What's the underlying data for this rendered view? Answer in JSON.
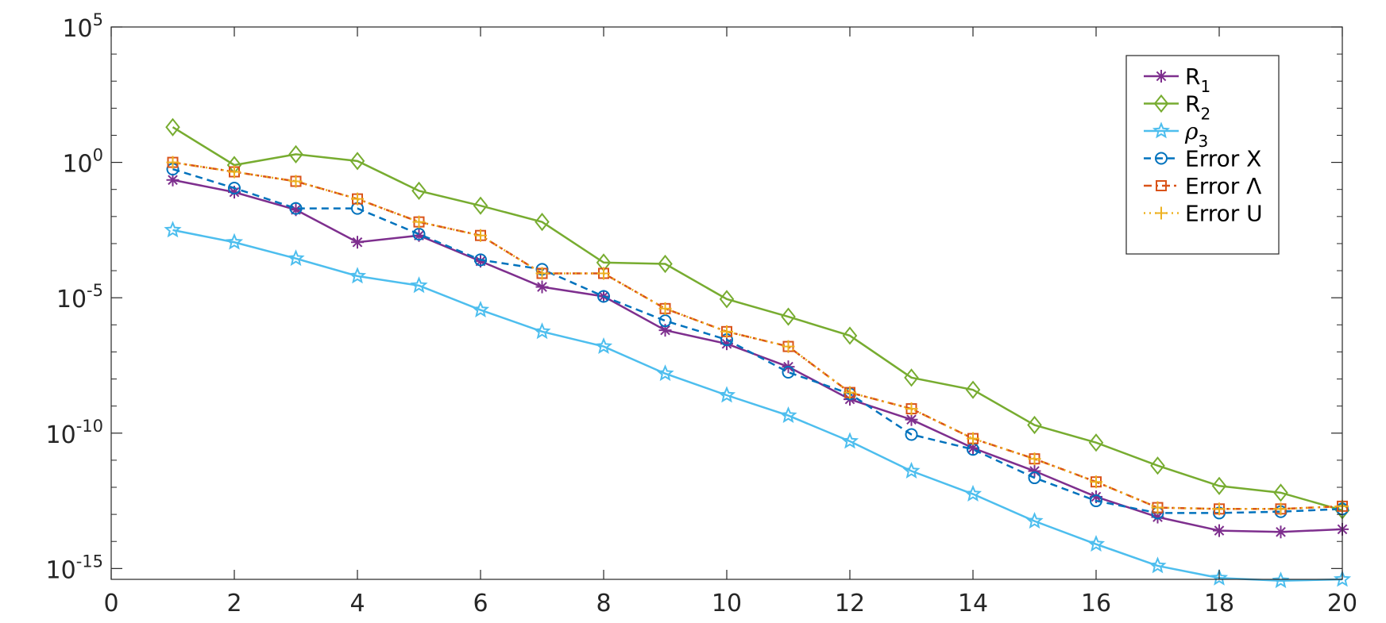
{
  "chart_data": {
    "type": "line",
    "title": "",
    "xlabel": "",
    "ylabel": "",
    "xlim": [
      0,
      20
    ],
    "ylim_log10": [
      -15.4,
      5
    ],
    "yscale": "log",
    "grid": false,
    "legend_position": "top-right",
    "x_ticks": [
      "0",
      "2",
      "4",
      "6",
      "8",
      "10",
      "12",
      "14",
      "16",
      "18",
      "20"
    ],
    "y_ticks": [
      {
        "base": "10",
        "exp": "5",
        "exp10": 5
      },
      {
        "base": "10",
        "exp": "0",
        "exp10": 0
      },
      {
        "base": "10",
        "exp": "-5",
        "exp10": -5
      },
      {
        "base": "10",
        "exp": "-10",
        "exp10": -10
      },
      {
        "base": "10",
        "exp": "-15",
        "exp10": -15
      }
    ],
    "x": [
      1,
      2,
      3,
      4,
      5,
      6,
      7,
      8,
      9,
      10,
      11,
      12,
      13,
      14,
      15,
      16,
      17,
      18,
      19,
      20
    ],
    "series": [
      {
        "name": "R",
        "name_sub": "1",
        "color": "#7E2F8E",
        "marker": "asterisk",
        "dash": "solid",
        "log10_values": [
          -0.65,
          -1.1,
          -1.75,
          -2.95,
          -2.7,
          -3.65,
          -4.6,
          -4.95,
          -6.2,
          -6.7,
          -7.55,
          -8.75,
          -9.5,
          -10.55,
          -11.4,
          -12.35,
          -13.1,
          -13.6,
          -13.65,
          -13.55
        ]
      },
      {
        "name": "R",
        "name_sub": "2",
        "color": "#77AC30",
        "marker": "diamond",
        "dash": "solid",
        "log10_values": [
          1.3,
          -0.1,
          0.3,
          0.05,
          -1.05,
          -1.6,
          -2.2,
          -3.7,
          -3.75,
          -5.05,
          -5.7,
          -6.4,
          -7.95,
          -8.4,
          -9.7,
          -10.35,
          -11.2,
          -11.95,
          -12.2,
          -12.85
        ]
      },
      {
        "name": "ρ",
        "name_sub": "3",
        "color": "#4DBEEE",
        "marker": "star",
        "dash": "solid",
        "log10_values": [
          -2.5,
          -2.95,
          -3.55,
          -4.2,
          -4.55,
          -5.45,
          -6.25,
          -6.8,
          -7.8,
          -8.6,
          -9.35,
          -10.3,
          -11.4,
          -12.25,
          -13.25,
          -14.1,
          -14.9,
          -15.35,
          -15.45,
          -15.4
        ]
      },
      {
        "name": "Error X",
        "color": "#0072BD",
        "marker": "circle",
        "dash": "dashed",
        "log10_values": [
          -0.25,
          -0.95,
          -1.7,
          -1.7,
          -2.65,
          -3.6,
          -3.95,
          -4.95,
          -5.85,
          -6.55,
          -7.75,
          -8.55,
          -10.05,
          -10.6,
          -11.65,
          -12.5,
          -12.95,
          -12.95,
          -12.9,
          -12.8
        ]
      },
      {
        "name": "Error Λ",
        "color": "#D95319",
        "marker": "square",
        "dash": "dashdot",
        "log10_values": [
          0.0,
          -0.35,
          -0.7,
          -1.35,
          -2.2,
          -2.7,
          -4.1,
          -4.1,
          -5.4,
          -6.25,
          -6.8,
          -8.5,
          -9.1,
          -10.2,
          -10.95,
          -11.8,
          -12.75,
          -12.8,
          -12.8,
          -12.7
        ]
      },
      {
        "name": "Error U",
        "color": "#EDB120",
        "marker": "plus",
        "dash": "dotted",
        "log10_values": [
          0.0,
          -0.35,
          -0.7,
          -1.35,
          -2.2,
          -2.7,
          -4.1,
          -4.1,
          -5.4,
          -6.25,
          -6.8,
          -8.5,
          -9.1,
          -10.2,
          -10.95,
          -11.8,
          -12.75,
          -12.8,
          -12.8,
          -12.7
        ]
      }
    ]
  }
}
